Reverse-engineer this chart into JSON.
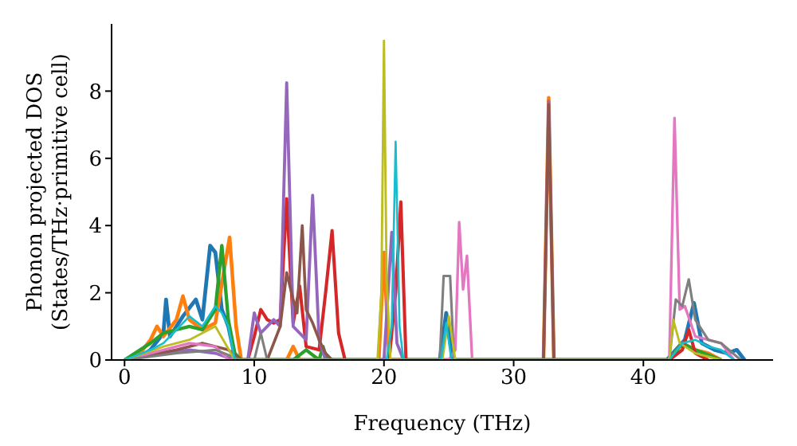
{
  "chart_data": {
    "type": "line",
    "xlabel": "Frequency (THz)",
    "ylabel": "Phonon projected DOS\n(States/THz·primitive cell)",
    "xlim": [
      -1,
      50
    ],
    "xticks": [
      0,
      10,
      20,
      30,
      40
    ],
    "ylim": [
      0,
      10
    ],
    "yticks": [
      0,
      2,
      4,
      6,
      8
    ],
    "series": [
      {
        "color": "#1f77b4",
        "x": [
          0,
          1,
          2,
          3,
          3.2,
          3.5,
          4.5,
          5.5,
          6,
          6.6,
          7,
          7.5,
          8,
          8.5,
          9,
          24.3,
          24.8,
          25.3,
          41.8,
          42.5,
          43.2,
          43.9,
          44.5,
          45.5,
          46.5,
          47.2,
          47.8
        ],
        "values": [
          0,
          0.05,
          0.3,
          0.8,
          1.8,
          0.7,
          1.3,
          1.8,
          1.2,
          3.4,
          3.2,
          1.5,
          1.0,
          0.1,
          0,
          0,
          1.4,
          0,
          0,
          0.3,
          0.6,
          1.7,
          0.5,
          0.3,
          0.2,
          0.3,
          0
        ]
      },
      {
        "color": "#ff7f0e",
        "x": [
          0,
          1,
          2,
          2.5,
          3,
          4,
          4.5,
          5,
          6,
          7,
          7.6,
          8.1,
          8.6,
          9,
          12.5,
          13,
          13.5,
          19.6,
          20,
          20.4,
          32.3,
          32.7,
          33.1,
          42,
          43,
          44,
          45,
          46
        ],
        "values": [
          0,
          0.1,
          0.6,
          1.0,
          0.7,
          1.2,
          1.9,
          1.2,
          0.9,
          1.1,
          2.5,
          3.65,
          1.0,
          0,
          0,
          0.4,
          0,
          0,
          3.2,
          0,
          0,
          7.8,
          0,
          0,
          0.5,
          0.3,
          0.2,
          0
        ]
      },
      {
        "color": "#2ca02c",
        "x": [
          0,
          2,
          3,
          4,
          5,
          6,
          7,
          7.5,
          8,
          8.5,
          9,
          13,
          14,
          15,
          15.3,
          15.6,
          42,
          43,
          44,
          46
        ],
        "values": [
          0,
          0.5,
          0.8,
          0.9,
          1.0,
          0.9,
          1.5,
          3.4,
          1.2,
          0.2,
          0,
          0,
          0.3,
          0,
          0.4,
          0,
          0,
          0.5,
          0.3,
          0
        ]
      },
      {
        "color": "#d62728",
        "x": [
          9.5,
          10,
          10.5,
          11,
          11.5,
          12,
          12.5,
          13,
          13.5,
          14,
          15,
          15.5,
          16,
          16.5,
          17,
          20.4,
          20.9,
          21.3,
          21.7,
          42,
          43,
          43.5,
          44,
          45
        ],
        "values": [
          0,
          0.7,
          1.5,
          1.2,
          1.1,
          1.2,
          4.8,
          1.1,
          2.2,
          0.4,
          0.3,
          2.0,
          3.85,
          0.8,
          0,
          0,
          2.0,
          4.7,
          0,
          0,
          0.3,
          0.9,
          0.2,
          0
        ]
      },
      {
        "color": "#9467bd",
        "x": [
          0,
          3,
          5,
          7,
          8.5,
          9.5,
          10,
          10.5,
          11,
          11.5,
          12,
          12.5,
          13,
          13.5,
          14,
          14.5,
          15,
          15.5,
          20,
          20.6,
          21,
          21.5,
          32.3,
          32.7,
          33.1
        ],
        "values": [
          0,
          0.2,
          0.3,
          0.2,
          0,
          0,
          1.4,
          0.8,
          1.0,
          1.2,
          1.0,
          8.25,
          1.0,
          0.8,
          0.6,
          4.9,
          0.6,
          0,
          0,
          3.8,
          0.5,
          0,
          0,
          7.7,
          0
        ]
      },
      {
        "color": "#8c564b",
        "x": [
          0,
          4,
          6,
          8,
          9,
          11,
          12,
          12.5,
          13,
          13.3,
          13.7,
          14,
          14.5,
          15,
          15.5,
          16,
          32.3,
          32.7,
          33.1
        ],
        "values": [
          0,
          0.3,
          0.5,
          0.3,
          0,
          0,
          1.0,
          2.6,
          1.8,
          1.4,
          4.0,
          1.5,
          1.1,
          0.6,
          0.2,
          0,
          0,
          7.6,
          0
        ]
      },
      {
        "color": "#e377c2",
        "x": [
          0,
          3,
          5,
          7,
          8,
          25,
          25.5,
          25.8,
          26.1,
          26.4,
          26.8,
          42,
          42.4,
          42.8,
          43.2,
          44,
          45,
          46,
          47
        ],
        "values": [
          0,
          0.3,
          0.5,
          0.4,
          0,
          0,
          0.3,
          4.1,
          2.1,
          3.1,
          0,
          0,
          7.2,
          1.5,
          1.6,
          0.7,
          0.6,
          0.5,
          0
        ]
      },
      {
        "color": "#7f7f7f",
        "x": [
          0,
          4,
          7,
          9,
          10,
          10.5,
          11,
          24.3,
          24.6,
          25.1,
          25.4,
          42,
          42.5,
          43,
          43.5,
          44,
          45,
          46,
          47.5
        ],
        "values": [
          0,
          0.2,
          0.3,
          0,
          0,
          0.8,
          0,
          0,
          2.5,
          2.5,
          0,
          0,
          1.8,
          1.6,
          2.4,
          1.2,
          0.6,
          0.5,
          0
        ]
      },
      {
        "color": "#bcbd22",
        "x": [
          0,
          3,
          5,
          7,
          8.5,
          19.5,
          19.8,
          20,
          20.2,
          20.5,
          24.5,
          25,
          25.5,
          42,
          42.3,
          42.8,
          44,
          46
        ],
        "values": [
          0,
          0.4,
          0.6,
          1.0,
          0,
          0,
          2.0,
          9.5,
          2.5,
          0,
          0,
          1.3,
          0,
          0,
          1.2,
          0.5,
          0.2,
          0
        ]
      },
      {
        "color": "#17becf",
        "x": [
          0,
          2,
          3,
          4,
          5,
          6,
          7,
          7.5,
          8,
          8.5,
          20.2,
          20.6,
          20.9,
          21.2,
          21.5,
          24.4,
          24.8,
          25.2,
          42,
          43,
          44,
          45,
          46,
          47
        ],
        "values": [
          0,
          0.3,
          0.5,
          0.9,
          1.3,
          1.0,
          1.6,
          1.4,
          1.0,
          0,
          0,
          1.0,
          6.5,
          1.0,
          0,
          0,
          1.1,
          0,
          0,
          0.5,
          0.6,
          0.4,
          0.3,
          0
        ]
      }
    ]
  }
}
